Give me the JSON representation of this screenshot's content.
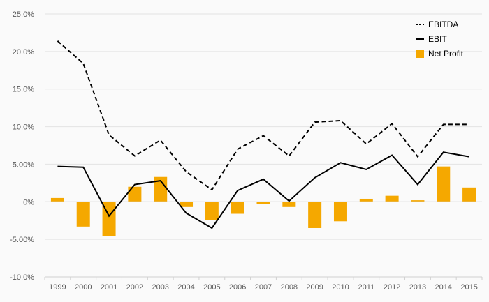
{
  "chart_data": {
    "type": "bar",
    "title": "",
    "xlabel": "",
    "ylabel": "",
    "categories": [
      "1999",
      "2000",
      "2001",
      "2002",
      "2003",
      "2004",
      "2005",
      "2006",
      "2007",
      "2008",
      "2009",
      "2010",
      "2011",
      "2012",
      "2013",
      "2014",
      "2015"
    ],
    "ylim": [
      -10,
      25
    ],
    "yticks": [
      -10,
      -5,
      0,
      5,
      10,
      15,
      20,
      25
    ],
    "ytick_labels": [
      "-10.0%",
      "-5.00%",
      "0%",
      "5.00%",
      "10.0%",
      "15.0%",
      "20.0%",
      "25.0%"
    ],
    "grid": true,
    "legend_position": "top-right",
    "series": [
      {
        "name": "EBITDA",
        "kind": "line",
        "style": "dashed",
        "color": "#000000",
        "values": [
          21.4,
          18.4,
          8.9,
          6.1,
          8.2,
          4.0,
          1.6,
          7.0,
          8.8,
          6.1,
          10.6,
          10.8,
          7.7,
          10.4,
          6.0,
          10.3,
          10.3
        ]
      },
      {
        "name": "EBIT",
        "kind": "line",
        "style": "solid",
        "color": "#000000",
        "values": [
          4.7,
          4.6,
          -1.9,
          2.3,
          2.8,
          -1.5,
          -3.5,
          1.5,
          3.0,
          0.1,
          3.2,
          5.2,
          4.3,
          6.2,
          2.3,
          6.6,
          6.0
        ]
      },
      {
        "name": "Net Profit",
        "kind": "bar",
        "color": "#f5a800",
        "values": [
          0.5,
          -3.3,
          -4.6,
          2.0,
          3.3,
          -0.7,
          -2.4,
          -1.6,
          -0.3,
          -0.7,
          -3.5,
          -2.6,
          0.4,
          0.8,
          0.2,
          4.7,
          1.9
        ]
      }
    ]
  }
}
